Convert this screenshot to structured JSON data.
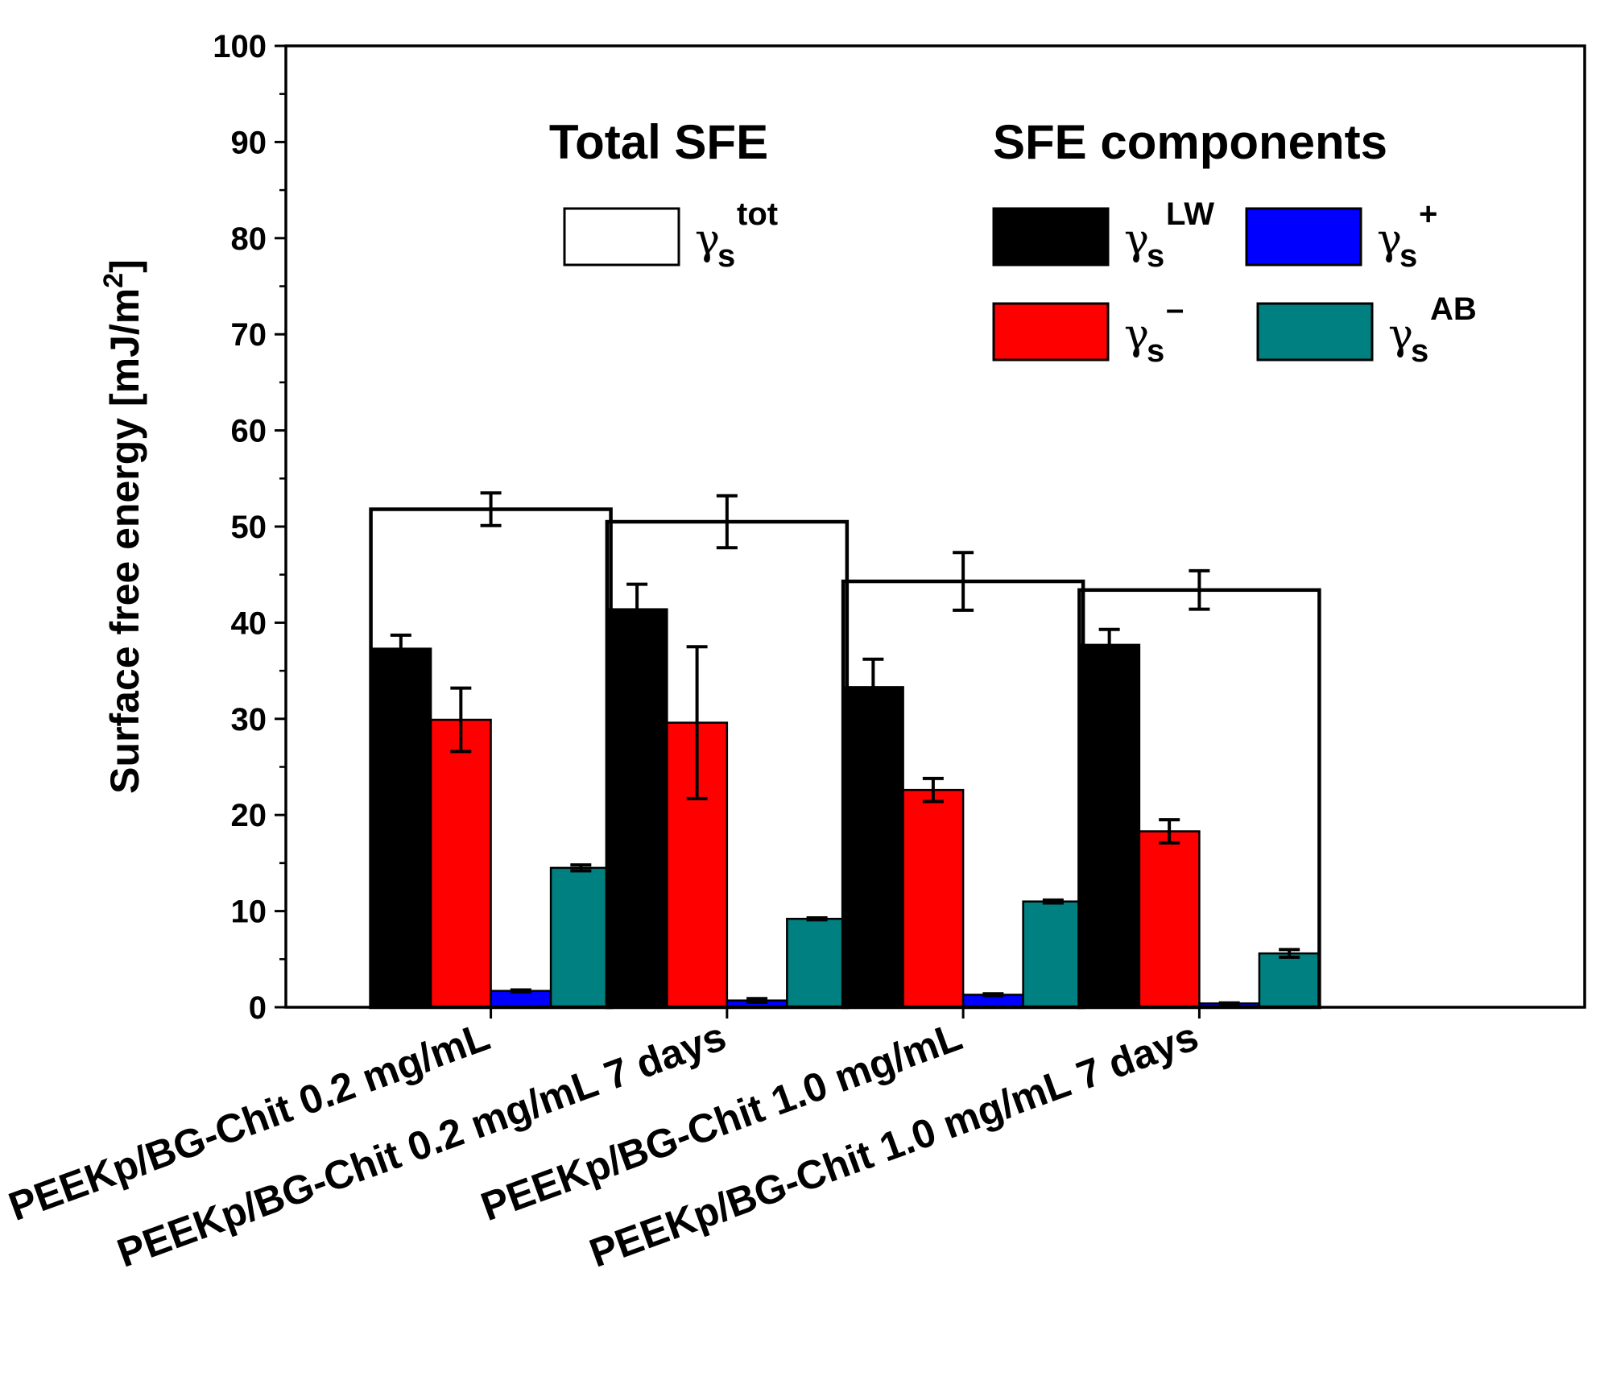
{
  "chart_data": {
    "type": "bar",
    "ylabel": "Surface free energy [mJ/m",
    "ylabel_sup": "2",
    "ylabel_end": "]",
    "ylim": [
      0,
      100
    ],
    "yticks": [
      "0",
      "10",
      "20",
      "30",
      "40",
      "50",
      "60",
      "70",
      "80",
      "90",
      "100"
    ],
    "categories": [
      "PEEKp/BG-Chit 0.2 mg/mL",
      "PEEKp/BG-Chit 0.2 mg/mL 7 days",
      "PEEKp/BG-Chit 1.0 mg/mL",
      "PEEKp/BG-Chit 1.0 mg/mL 7 days"
    ],
    "total": {
      "legend_title": "Total SFE",
      "symbol": "γ",
      "sub": "s",
      "sup": "tot",
      "color": "#ffffff",
      "values": [
        51.8,
        50.5,
        44.3,
        43.4
      ],
      "errors": [
        1.7,
        2.7,
        3.0,
        2.0
      ]
    },
    "components_title": "SFE components",
    "series": [
      {
        "symbol": "γ",
        "sub": "s",
        "sup": "LW",
        "color": "#000000",
        "values": [
          37.3,
          41.4,
          33.3,
          37.7
        ],
        "errors": [
          1.4,
          2.6,
          2.9,
          1.6
        ]
      },
      {
        "symbol": "γ",
        "sub": "s",
        "sup": "–",
        "color": "#ff0000",
        "values": [
          29.9,
          29.6,
          22.6,
          18.3
        ],
        "errors": [
          3.3,
          7.9,
          1.2,
          1.2
        ]
      },
      {
        "symbol": "γ",
        "sub": "s",
        "sup": "+",
        "color": "#0000ff",
        "values": [
          1.7,
          0.7,
          1.3,
          0.4
        ],
        "errors": [
          0.1,
          0.2,
          0.1,
          0.05
        ]
      },
      {
        "symbol": "γ",
        "sub": "s",
        "sup": "AB",
        "color": "#008080",
        "values": [
          14.5,
          9.2,
          11.0,
          5.6
        ],
        "errors": [
          0.3,
          0.1,
          0.15,
          0.4
        ]
      }
    ],
    "legend_order": [
      0,
      2,
      1,
      3
    ]
  }
}
